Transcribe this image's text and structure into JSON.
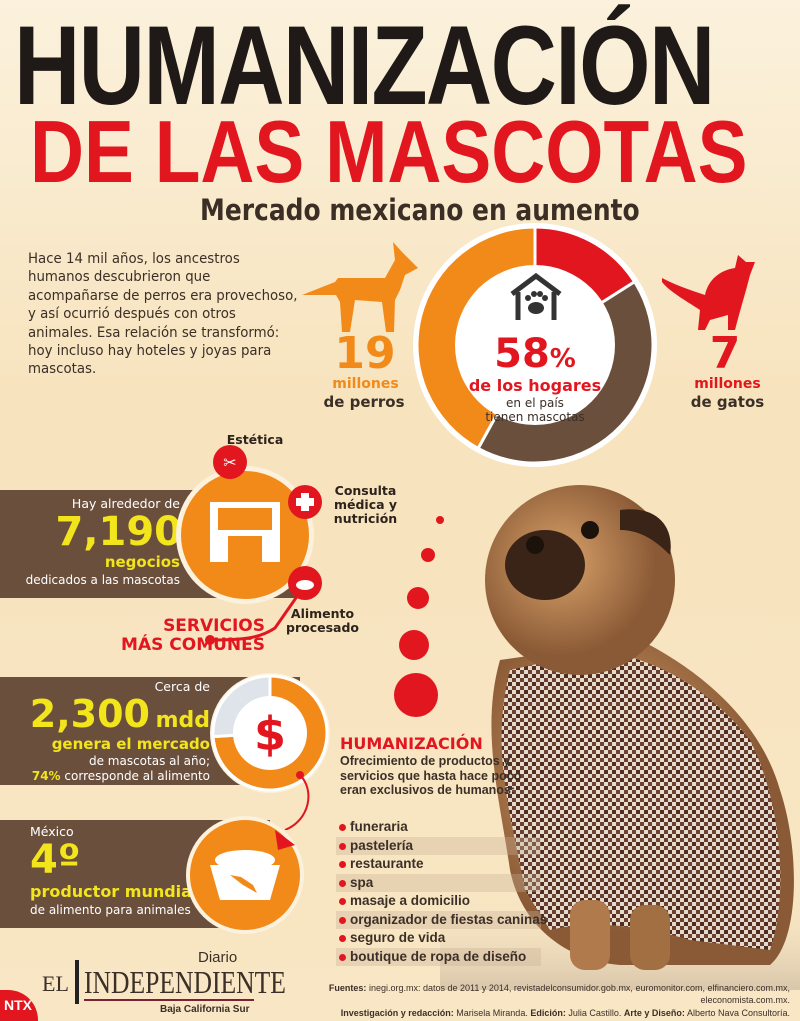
{
  "header": {
    "title_line1": "HUMANIZACIÓN",
    "title_line2": "DE LAS MASCOTAS",
    "subtitle": "Mercado mexicano en aumento"
  },
  "intro": "Hace 14 mil años, los ancestros humanos descubrieron que acompañarse de perros era provechoso, y así ocurrió después con otros animales. Esa relación se transformó: hoy incluso hay hoteles y joyas para mascotas.",
  "dogs": {
    "number": "19",
    "unit": "millones",
    "label": "de perros"
  },
  "cats": {
    "number": "7",
    "unit": "millones",
    "label": "de gatos"
  },
  "households": {
    "percent": "58",
    "percent_sign": "%",
    "line1": "de los hogares",
    "line2": "en el país",
    "line3": "tienen mascotas"
  },
  "business": {
    "pre": "Hay alrededor de",
    "number": "7,190",
    "unit": "negocios",
    "post": "dedicados a las mascotas"
  },
  "services": {
    "title1": "SERVICIOS",
    "title2": "MÁS COMUNES",
    "items": [
      "Estética",
      "Consulta médica y nutrición",
      "Alimento procesado"
    ]
  },
  "market": {
    "pre": "Cerca de",
    "number": "2,300",
    "unit": "mdd",
    "line1": "genera el mercado",
    "line2": "de mascotas al año;",
    "percent": "74%",
    "line3": "corresponde al alimento",
    "food_share": 0.74
  },
  "producer": {
    "pre": "México",
    "rank": "4º",
    "line1": "productor mundial",
    "line2": "de alimento para animales"
  },
  "humanization": {
    "title": "HUMANIZACIÓN",
    "desc": "Ofrecimiento de productos y servicios que hasta hace poco eran exclusivos de humanos:",
    "items": [
      "funeraria",
      "pastelería",
      "restaurante",
      "spa",
      "masaje a domicilio",
      "organizador de fiestas caninas",
      "seguro de vida",
      "boutique de ropa de diseño"
    ]
  },
  "logo": {
    "diario": "Diario",
    "el": "EL",
    "name": "INDEPENDIENTE",
    "region": "Baja California Sur",
    "agency": "NTX"
  },
  "footer": {
    "sources_label": "Fuentes:",
    "sources": "inegi.org.mx: datos de 2011 y 2014, revistadelconsumidor.gob.mx, euromonitor.com, elfinanciero.com.mx, eleconomista.com.mx.",
    "credits_label1": "Investigación y redacción:",
    "credits1": "Marisela Miranda.",
    "credits_label2": "Edición:",
    "credits2": "Julia Castillo.",
    "credits_label3": "Arte y Diseño:",
    "credits3": "Alberto Nava Consultoría."
  },
  "colors": {
    "red": "#e2161f",
    "orange": "#f28a1a",
    "brown": "#6b4f3d",
    "yellow": "#f2e51b"
  }
}
